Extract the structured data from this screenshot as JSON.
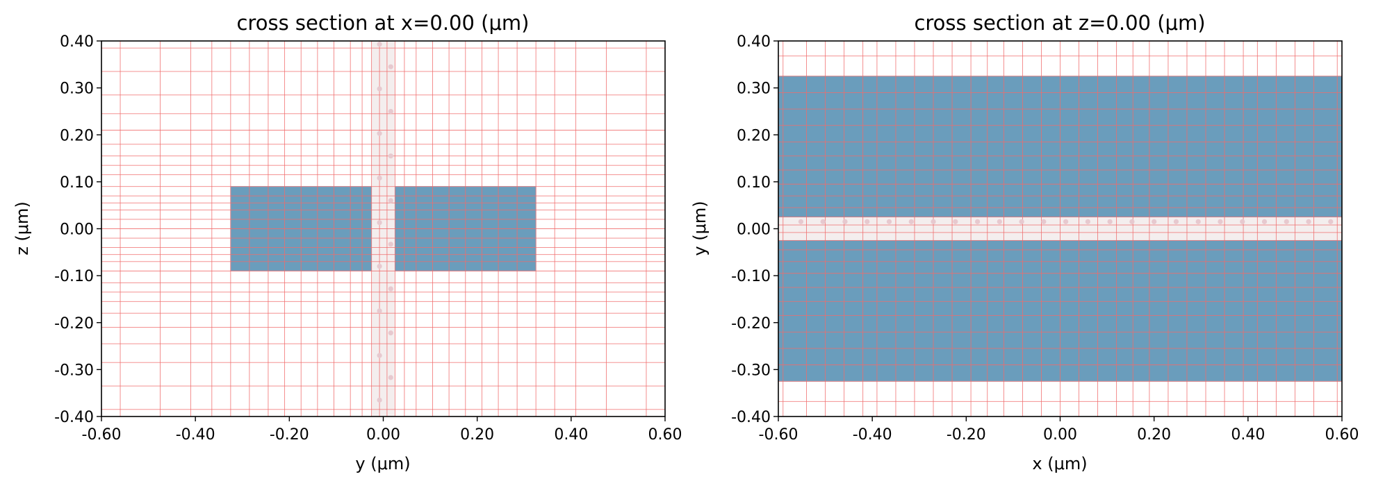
{
  "chart_data": [
    {
      "type": "heatmap",
      "title": "cross section at x=0.00 (μm)",
      "xlabel": "y (μm)",
      "ylabel": "z (μm)",
      "xlim": [
        -0.6,
        0.6
      ],
      "ylim": [
        -0.4,
        0.4
      ],
      "xticks": [
        "-0.60",
        "-0.40",
        "-0.20",
        "0.00",
        "0.20",
        "0.40",
        "0.60"
      ],
      "yticks": [
        "-0.40",
        "-0.30",
        "-0.20",
        "-0.10",
        "0.00",
        "0.10",
        "0.20",
        "0.30",
        "0.40"
      ],
      "structures": [
        {
          "name": "left block",
          "x": [
            -0.325,
            -0.025
          ],
          "y": [
            -0.09,
            0.09
          ]
        },
        {
          "name": "right block",
          "x": [
            0.025,
            0.325
          ],
          "y": [
            -0.09,
            0.09
          ]
        }
      ],
      "gap_band": {
        "orientation": "vertical",
        "range": [
          -0.025,
          0.025
        ]
      },
      "grid_x": [
        -0.56,
        -0.475,
        -0.41,
        -0.365,
        -0.325,
        -0.285,
        -0.245,
        -0.21,
        -0.175,
        -0.14,
        -0.105,
        -0.07,
        -0.045,
        -0.025,
        -0.008,
        0.008,
        0.025,
        0.045,
        0.07,
        0.105,
        0.14,
        0.175,
        0.21,
        0.245,
        0.285,
        0.325,
        0.365,
        0.41,
        0.475,
        0.56
      ],
      "grid_y": [
        -0.385,
        -0.335,
        -0.285,
        -0.245,
        -0.21,
        -0.18,
        -0.155,
        -0.135,
        -0.115,
        -0.09,
        -0.07,
        -0.055,
        -0.04,
        -0.02,
        0.0,
        0.02,
        0.04,
        0.055,
        0.07,
        0.09,
        0.115,
        0.135,
        0.155,
        0.18,
        0.21,
        0.245,
        0.285,
        0.335,
        0.385
      ],
      "markers": [
        {
          "x": -0.008,
          "y": 0.393
        },
        {
          "x": 0.016,
          "y": 0.345
        },
        {
          "x": -0.008,
          "y": 0.298
        },
        {
          "x": 0.016,
          "y": 0.25
        },
        {
          "x": -0.008,
          "y": 0.203
        },
        {
          "x": 0.016,
          "y": 0.155
        },
        {
          "x": -0.008,
          "y": 0.108
        },
        {
          "x": 0.016,
          "y": 0.06
        },
        {
          "x": -0.008,
          "y": 0.013
        },
        {
          "x": 0.016,
          "y": -0.033
        },
        {
          "x": -0.008,
          "y": -0.08
        },
        {
          "x": 0.016,
          "y": -0.128
        },
        {
          "x": -0.008,
          "y": -0.175
        },
        {
          "x": 0.016,
          "y": -0.222
        },
        {
          "x": -0.008,
          "y": -0.27
        },
        {
          "x": 0.016,
          "y": -0.317
        },
        {
          "x": -0.008,
          "y": -0.365
        }
      ],
      "grid": true
    },
    {
      "type": "heatmap",
      "title": "cross section at z=0.00 (μm)",
      "xlabel": "x (μm)",
      "ylabel": "y (μm)",
      "xlim": [
        -0.6,
        0.6
      ],
      "ylim": [
        -0.4,
        0.4
      ],
      "xticks": [
        "-0.60",
        "-0.40",
        "-0.20",
        "0.00",
        "0.20",
        "0.40",
        "0.60"
      ],
      "yticks": [
        "-0.40",
        "-0.30",
        "-0.20",
        "-0.10",
        "0.00",
        "0.10",
        "0.20",
        "0.30",
        "0.40"
      ],
      "structures": [
        {
          "name": "upper block",
          "x": [
            -0.6,
            0.6
          ],
          "y": [
            0.025,
            0.325
          ]
        },
        {
          "name": "lower block",
          "x": [
            -0.6,
            0.6
          ],
          "y": [
            -0.325,
            -0.025
          ]
        }
      ],
      "gap_band": {
        "orientation": "horizontal",
        "range": [
          -0.025,
          0.025
        ]
      },
      "grid_x": [
        -0.59,
        -0.54,
        -0.5,
        -0.46,
        -0.42,
        -0.39,
        -0.35,
        -0.31,
        -0.27,
        -0.23,
        -0.19,
        -0.155,
        -0.12,
        -0.08,
        -0.04,
        0.0,
        0.04,
        0.08,
        0.12,
        0.155,
        0.19,
        0.23,
        0.27,
        0.31,
        0.35,
        0.39,
        0.42,
        0.46,
        0.5,
        0.54,
        0.59
      ],
      "grid_y": [
        -0.368,
        -0.325,
        -0.29,
        -0.255,
        -0.22,
        -0.185,
        -0.155,
        -0.125,
        -0.095,
        -0.07,
        -0.045,
        -0.025,
        -0.008,
        0.008,
        0.025,
        0.045,
        0.07,
        0.095,
        0.125,
        0.155,
        0.185,
        0.22,
        0.255,
        0.29,
        0.325,
        0.368
      ],
      "markers": [
        {
          "x": -0.552,
          "y": 0.015
        },
        {
          "x": -0.505,
          "y": 0.015
        },
        {
          "x": -0.458,
          "y": 0.015
        },
        {
          "x": -0.411,
          "y": 0.015
        },
        {
          "x": -0.364,
          "y": 0.015
        },
        {
          "x": -0.317,
          "y": 0.015
        },
        {
          "x": -0.27,
          "y": 0.015
        },
        {
          "x": -0.223,
          "y": 0.015
        },
        {
          "x": -0.176,
          "y": 0.015
        },
        {
          "x": -0.129,
          "y": 0.015
        },
        {
          "x": -0.082,
          "y": 0.015
        },
        {
          "x": -0.035,
          "y": 0.015
        },
        {
          "x": 0.012,
          "y": 0.015
        },
        {
          "x": 0.059,
          "y": 0.015
        },
        {
          "x": 0.106,
          "y": 0.015
        },
        {
          "x": 0.153,
          "y": 0.015
        },
        {
          "x": 0.2,
          "y": 0.015
        },
        {
          "x": 0.247,
          "y": 0.015
        },
        {
          "x": 0.294,
          "y": 0.015
        },
        {
          "x": 0.341,
          "y": 0.015
        },
        {
          "x": 0.388,
          "y": 0.015
        },
        {
          "x": 0.435,
          "y": 0.015
        },
        {
          "x": 0.482,
          "y": 0.015
        },
        {
          "x": 0.529,
          "y": 0.015
        },
        {
          "x": 0.576,
          "y": 0.015
        }
      ],
      "grid": true
    }
  ],
  "colors": {
    "structure": "#6a9dbc",
    "structure_edge": "#9ab8d0",
    "grid_line": "#f06c6c",
    "gap_band": "#f4eeee",
    "marker": "#e7c9cf",
    "axis": "#000000"
  }
}
